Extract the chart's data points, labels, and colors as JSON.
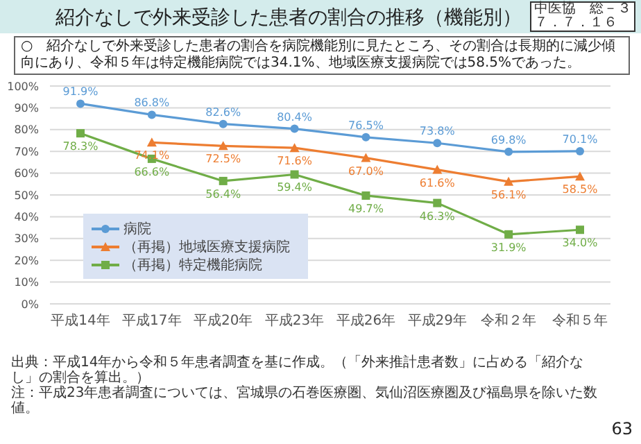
{
  "chart_data": {
    "type": "line",
    "title": "紹介なしで外来受診した患者の割合の推移（機能別）",
    "subtitle": "○　紹介なしで外来受診した患者の割合を病院機能別に見たところ、その割合は長期的に減少傾向にあり、令和５年は特定機能病院では34.1%、地域医療支援病院では58.5%であった。",
    "categories": [
      "平成14年",
      "平成17年",
      "平成20年",
      "平成23年",
      "平成26年",
      "平成29年",
      "令和２年",
      "令和５年"
    ],
    "series": [
      {
        "name": "病院",
        "color": "#5b9bd5",
        "marker": "circle",
        "values": [
          91.9,
          86.8,
          82.6,
          80.4,
          76.5,
          73.8,
          69.8,
          70.1
        ],
        "value_labels": [
          "91.9%",
          "86.8%",
          "82.6%",
          "80.4%",
          "76.5%",
          "73.8%",
          "69.8%",
          "70.1%"
        ]
      },
      {
        "name": "（再掲）地域医療支援病院",
        "color": "#ed7d31",
        "marker": "triangle",
        "values": [
          null,
          74.1,
          72.5,
          71.6,
          67.0,
          61.6,
          56.1,
          58.5
        ],
        "value_labels": [
          null,
          "74.1%",
          "72.5%",
          "71.6%",
          "67.0%",
          "61.6%",
          "56.1%",
          "58.5%"
        ]
      },
      {
        "name": "（再掲）特定機能病院",
        "color": "#70ad47",
        "marker": "square",
        "values": [
          78.3,
          66.6,
          56.4,
          59.4,
          49.7,
          46.3,
          31.9,
          34.0
        ],
        "value_labels": [
          "78.3%",
          "66.6%",
          "56.4%",
          "59.4%",
          "49.7%",
          "46.3%",
          "31.9%",
          "34.0%"
        ]
      }
    ],
    "ylim": [
      0,
      100
    ],
    "yticks": [
      {
        "value": 0,
        "label": "0%"
      },
      {
        "value": 10,
        "label": "10%"
      },
      {
        "value": 20,
        "label": "20%"
      },
      {
        "value": 30,
        "label": "30%"
      },
      {
        "value": 40,
        "label": "40%"
      },
      {
        "value": 50,
        "label": "50%"
      },
      {
        "value": 60,
        "label": "60%"
      },
      {
        "value": 70,
        "label": "70%"
      },
      {
        "value": 80,
        "label": "80%"
      },
      {
        "value": 90,
        "label": "90%"
      },
      {
        "value": 100,
        "label": "100%"
      }
    ],
    "grid": "y",
    "legend": "bottom left",
    "annotations": [
      "中医協　総－３",
      "７．７．１６",
      "出典：平成14年から令和５年患者調査を基に作成。（「外来推計患者数」に占める「紹介なし」の割合を算出。）",
      "注：平成23年患者調査については、宮城県の石巻医療圏、気仙沼医療圏及び福島県を除いた数値。",
      "63"
    ]
  }
}
